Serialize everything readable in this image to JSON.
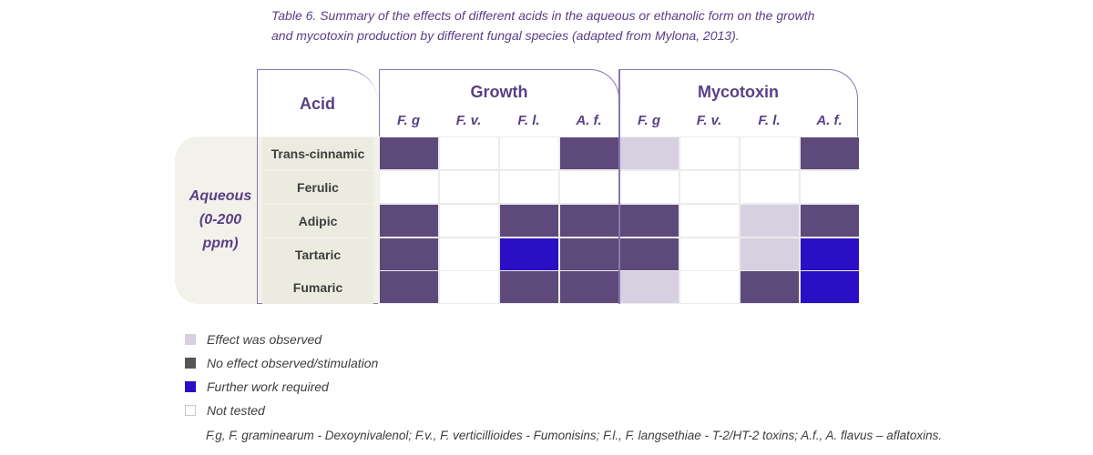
{
  "caption": {
    "line1": "Table 6. Summary of the effects of different acids in the aqueous or ethanolic form on the growth",
    "line2": "and mycotoxin production by different fungal species (adapted from Mylona, 2013)."
  },
  "header": {
    "acid": "Acid",
    "growth": "Growth",
    "mycotoxin": "Mycotoxin",
    "columns": [
      "F. g",
      "F. v.",
      "F. l.",
      "A. f.",
      "F. g",
      "F. v.",
      "F. l.",
      "A. f."
    ]
  },
  "group": {
    "line1": "Aqueous",
    "line2": "(0-200",
    "line3": "ppm)"
  },
  "colors": {
    "observed": "#d6d0e1",
    "no_effect": "#5e4a7a",
    "further": "#2a0fc4",
    "not_tested": "#ffffff"
  },
  "rows": [
    {
      "acid": "Trans-cinnamic",
      "cells": [
        "no_effect",
        "not_tested",
        "not_tested",
        "no_effect",
        "observed",
        "not_tested",
        "not_tested",
        "no_effect"
      ]
    },
    {
      "acid": "Ferulic",
      "cells": [
        "not_tested",
        "not_tested",
        "not_tested",
        "not_tested",
        "not_tested",
        "not_tested",
        "not_tested",
        "not_tested"
      ]
    },
    {
      "acid": "Adipic",
      "cells": [
        "no_effect",
        "not_tested",
        "no_effect",
        "no_effect",
        "no_effect",
        "not_tested",
        "observed",
        "no_effect"
      ]
    },
    {
      "acid": "Tartaric",
      "cells": [
        "no_effect",
        "not_tested",
        "further",
        "no_effect",
        "no_effect",
        "not_tested",
        "observed",
        "further"
      ]
    },
    {
      "acid": "Fumaric",
      "cells": [
        "no_effect",
        "not_tested",
        "no_effect",
        "no_effect",
        "observed",
        "not_tested",
        "no_effect",
        "further"
      ]
    }
  ],
  "legend": [
    {
      "key": "observed",
      "label": "Effect was observed"
    },
    {
      "key": "no_effect",
      "label": "No effect observed/stimulation"
    },
    {
      "key": "further",
      "label": "Further work required"
    },
    {
      "key": "not_tested",
      "label": "Not tested"
    }
  ],
  "footnote": "F.g, F. graminearum - Dexoynivalenol; F.v., F. verticillioides - Fumonisins; F.l., F. langsethiae - T-2/HT-2 toxins; A.f., A. flavus – aflatoxins."
}
